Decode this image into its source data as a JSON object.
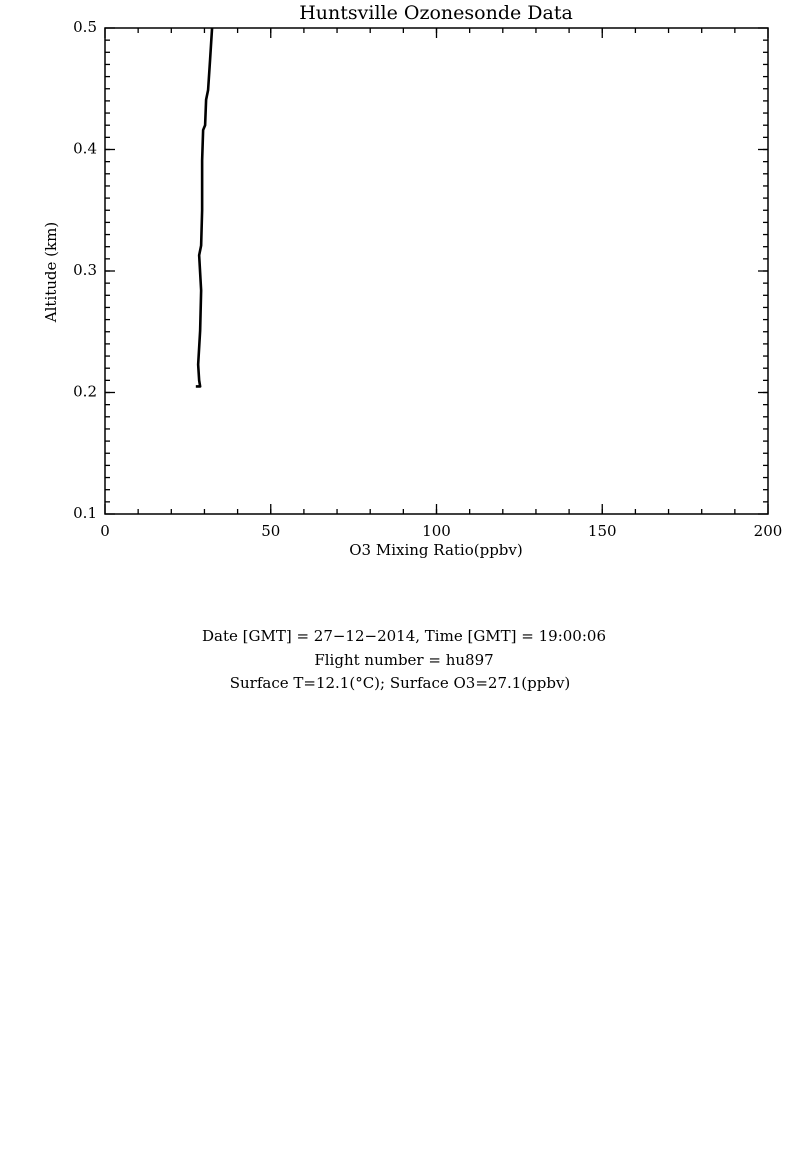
{
  "chart_data": {
    "type": "line",
    "title": "Huntsville Ozonesonde Data",
    "x_label": "O3 Mixing Ratio(ppbv)",
    "y_label": "Altitude (km)",
    "xlim": [
      0,
      200
    ],
    "xticks": [
      0,
      50,
      100,
      150,
      200
    ],
    "xminor": 10,
    "ylim": [
      0.1,
      0.5
    ],
    "yticks": [
      0.1,
      0.2,
      0.3,
      0.4,
      0.5
    ],
    "yminor": 0.01,
    "series": [
      {
        "color": "#000000",
        "x": [
          27.4,
          28.7,
          28.4,
          28.1,
          28.7,
          29.0,
          28.4,
          29.0,
          29.3,
          29.3,
          29.6,
          30.2,
          30.5,
          31.1,
          31.7,
          32.3
        ],
        "values": [
          0.205,
          0.205,
          0.21,
          0.223,
          0.251,
          0.284,
          0.313,
          0.321,
          0.35,
          0.391,
          0.416,
          0.42,
          0.441,
          0.449,
          0.474,
          0.5
        ]
      }
    ],
    "notes": [
      "Date [GMT] = 27−12−2014,  Time [GMT] = 19:00:06",
      "Flight number = hu897",
      "Surface T=12.1(°C); Surface O3=27.1(ppbv)"
    ]
  }
}
